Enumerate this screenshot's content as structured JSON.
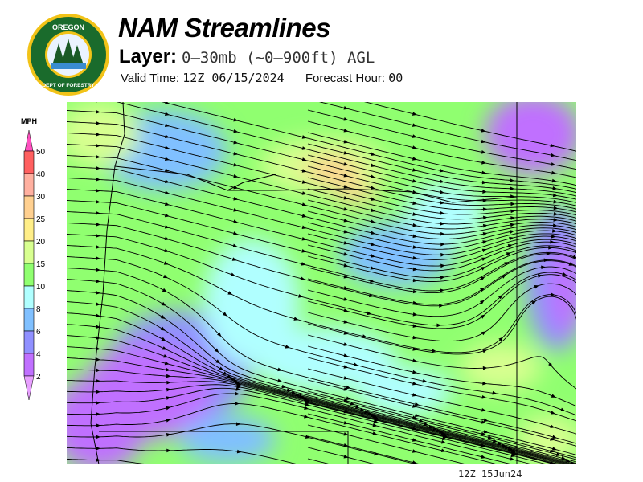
{
  "logo": {
    "top_text": "OREGON",
    "ring_text": "DEPARTMENT OF FORESTRY"
  },
  "header": {
    "title": "NAM Streamlines",
    "layer_label": "Layer:",
    "layer_value": "0–30mb (~0–900ft) AGL",
    "valid_label": "Valid Time:",
    "valid_value": "12Z 06/15/2024",
    "forecast_label": "Forecast Hour:",
    "forecast_value": "00"
  },
  "legend": {
    "unit": "MPH",
    "bins": [
      {
        "label": "50",
        "color": "#ff6060"
      },
      {
        "label": "40",
        "color": "#ffb0a0"
      },
      {
        "label": "30",
        "color": "#ffd090"
      },
      {
        "label": "25",
        "color": "#ffee88"
      },
      {
        "label": "20",
        "color": "#d8ff90"
      },
      {
        "label": "15",
        "color": "#90ff70"
      },
      {
        "label": "10",
        "color": "#b0ffff"
      },
      {
        "label": "8",
        "color": "#80c0ff"
      },
      {
        "label": "6",
        "color": "#9090ff"
      },
      {
        "label": "4",
        "color": "#c070ff"
      },
      {
        "label": "2",
        "color": "#e8a0ff"
      }
    ],
    "top_arrow_color": "#ff50c0"
  },
  "footer": {
    "timestamp": "12Z 15Jun24"
  }
}
